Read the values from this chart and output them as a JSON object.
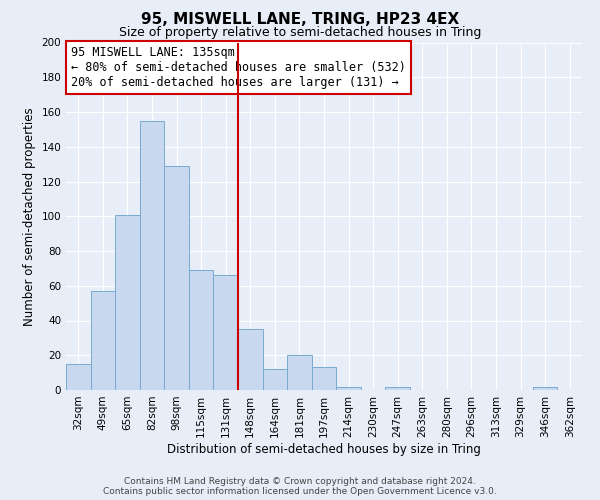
{
  "title": "95, MISWELL LANE, TRING, HP23 4EX",
  "subtitle": "Size of property relative to semi-detached houses in Tring",
  "xlabel": "Distribution of semi-detached houses by size in Tring",
  "ylabel": "Number of semi-detached properties",
  "bar_labels": [
    "32sqm",
    "49sqm",
    "65sqm",
    "82sqm",
    "98sqm",
    "115sqm",
    "131sqm",
    "148sqm",
    "164sqm",
    "181sqm",
    "197sqm",
    "214sqm",
    "230sqm",
    "247sqm",
    "263sqm",
    "280sqm",
    "296sqm",
    "313sqm",
    "329sqm",
    "346sqm",
    "362sqm"
  ],
  "bar_values": [
    15,
    57,
    101,
    155,
    129,
    69,
    66,
    35,
    12,
    20,
    13,
    2,
    0,
    2,
    0,
    0,
    0,
    0,
    0,
    2,
    0
  ],
  "bar_color": "#c8d8ee",
  "bar_edge_color": "#7aaad0",
  "vline_x_index": 6,
  "vline_color": "#cc0000",
  "annotation_title": "95 MISWELL LANE: 135sqm",
  "annotation_line1": "← 80% of semi-detached houses are smaller (532)",
  "annotation_line2": "20% of semi-detached houses are larger (131) →",
  "annotation_box_color": "#ffffff",
  "annotation_box_edge": "#cc0000",
  "ylim": [
    0,
    200
  ],
  "yticks": [
    0,
    20,
    40,
    60,
    80,
    100,
    120,
    140,
    160,
    180,
    200
  ],
  "footer_line1": "Contains HM Land Registry data © Crown copyright and database right 2024.",
  "footer_line2": "Contains public sector information licensed under the Open Government Licence v3.0.",
  "background_color": "#e8eef8",
  "grid_color": "#ffffff",
  "title_fontsize": 11,
  "subtitle_fontsize": 9,
  "axis_label_fontsize": 8.5,
  "tick_fontsize": 7.5,
  "footer_fontsize": 6.5,
  "annotation_fontsize": 8.5
}
